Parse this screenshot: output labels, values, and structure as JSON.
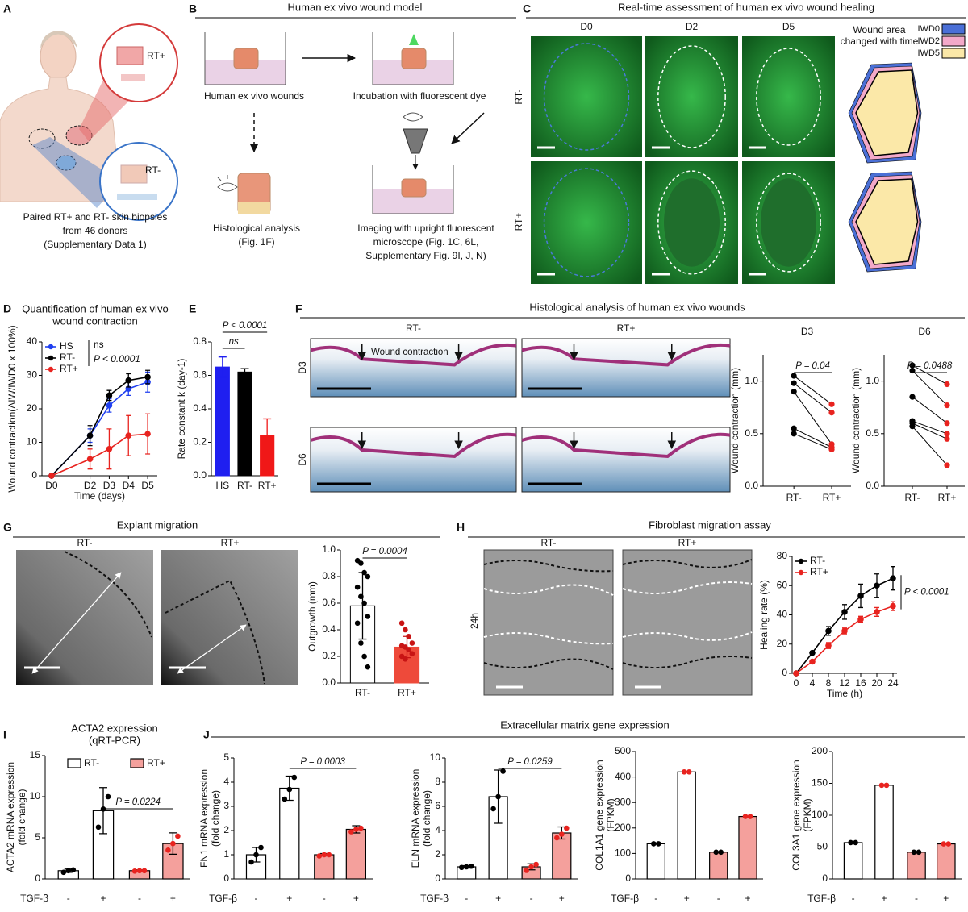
{
  "panel_labels": [
    "A",
    "B",
    "C",
    "D",
    "E",
    "F",
    "G",
    "H",
    "I",
    "J"
  ],
  "A": {
    "biopsy_labels": [
      "RT+",
      "RT-"
    ],
    "caption": [
      "Paired RT+ and RT- skin biopsies",
      "from 46 donors",
      "(Supplementary Data 1)"
    ]
  },
  "B": {
    "title": "Human ex vivo wound model",
    "steps": [
      "Human ex vivo wounds",
      "Incubation with fluorescent dye"
    ],
    "histology": [
      "Histological analysis",
      "(Fig. 1F)"
    ],
    "imaging": [
      "Imaging with upright fluorescent",
      "microscope (Fig. 1C, 6L,",
      "Supplementary Fig. 9I, J, N)"
    ]
  },
  "C": {
    "title": "Real-time assessment of human ex vivo wound healing",
    "columns": [
      "D0",
      "D2",
      "D5"
    ],
    "rows": [
      "RT-",
      "RT+"
    ],
    "legend_title": [
      "Wound area",
      "changed with time"
    ],
    "legend": [
      {
        "name": "IWD0",
        "color": "#4a6fd6"
      },
      {
        "name": "IWD2",
        "color": "#f3a9c9"
      },
      {
        "name": "IWD5",
        "color": "#fbe8a8"
      }
    ]
  },
  "D": {
    "type": "line",
    "title": [
      "Quantification of human ex vivo",
      "wound contraction"
    ],
    "ylabel": "Wound contraction(ΔIW/IWD0 x 100%)",
    "xlabel": "Time (days)",
    "x": [
      0,
      2,
      3,
      4,
      5
    ],
    "xlim": [
      -0.5,
      5.5
    ],
    "xticks": [
      {
        "value": 0,
        "label": "D0"
      },
      {
        "value": 2,
        "label": "D2"
      },
      {
        "value": 3,
        "label": "D3"
      },
      {
        "value": 4,
        "label": "D4"
      },
      {
        "value": 5,
        "label": "D5"
      }
    ],
    "ylim": [
      0,
      40
    ],
    "yticks": [
      0,
      10,
      20,
      30,
      40
    ],
    "series": [
      {
        "name": "HS",
        "color": "#1f3ff0",
        "values": [
          0,
          12,
          21,
          26,
          28
        ],
        "errors": [
          0,
          2,
          2,
          2,
          3
        ]
      },
      {
        "name": "RT-",
        "color": "#000000",
        "values": [
          0,
          12,
          24,
          28.5,
          29.5
        ],
        "errors": [
          0,
          3,
          1.5,
          2,
          2
        ]
      },
      {
        "name": "RT+",
        "color": "#e8231f",
        "values": [
          0,
          5,
          8,
          12,
          12.5
        ],
        "errors": [
          0,
          3,
          6,
          6,
          6
        ]
      }
    ],
    "annotations": [
      "ns",
      "P < 0.0001"
    ]
  },
  "E": {
    "type": "bar",
    "ylabel": "Rate constant k (day-1)",
    "categories": [
      "HS",
      "RT-",
      "RT+"
    ],
    "values": [
      0.65,
      0.62,
      0.24
    ],
    "errors": [
      0.06,
      0.02,
      0.1
    ],
    "colors": [
      "#1f1ff0",
      "#000000",
      "#f01818"
    ],
    "ylim": [
      0,
      0.8
    ],
    "yticks": [
      {
        "value": 0,
        "label": "0.0"
      },
      0.2,
      0.4,
      0.6,
      0.8
    ],
    "annotations": [
      "ns",
      "P < 0.0001"
    ]
  },
  "F": {
    "title": "Histological analysis of human ex vivo wounds",
    "columns": [
      "RT-",
      "RT+"
    ],
    "rows": [
      "D3",
      "D6"
    ],
    "annotation": "Wound contraction",
    "charts": [
      {
        "type": "paired",
        "title": "D3",
        "ylabel": "Wound contraction (mm)",
        "categories": [
          "RT-",
          "RT+"
        ],
        "series": [
          {
            "color": "#000000",
            "values": [
              1.05,
              0.98,
              0.9,
              0.55,
              0.5
            ]
          },
          {
            "color": "#e8231f",
            "values": [
              0.78,
              0.7,
              0.4,
              0.37,
              0.35
            ]
          }
        ],
        "ylim": [
          0,
          1.25
        ],
        "yticks": [
          {
            "value": 0,
            "label": "0.0"
          },
          0.5,
          {
            "value": 1,
            "label": "1.0"
          }
        ],
        "annotation": "P = 0.04"
      },
      {
        "type": "paired",
        "title": "D6",
        "ylabel": "Wound contraction (mm)",
        "categories": [
          "RT-",
          "RT+"
        ],
        "series": [
          {
            "color": "#000000",
            "values": [
              1.15,
              1.1,
              0.85,
              0.62,
              0.6,
              0.57
            ]
          },
          {
            "color": "#e8231f",
            "values": [
              0.97,
              0.77,
              0.6,
              0.5,
              0.45,
              0.2
            ]
          }
        ],
        "ylim": [
          0,
          1.25
        ],
        "yticks": [
          {
            "value": 0,
            "label": "0.0"
          },
          0.5,
          {
            "value": 1,
            "label": "1.0"
          }
        ],
        "annotation": "P = 0.0488"
      }
    ]
  },
  "G": {
    "title": "Explant migration",
    "columns": [
      "RT-",
      "RT+"
    ],
    "chart": {
      "type": "bar",
      "ylabel": "Outgrowth (mm)",
      "categories": [
        "RT-",
        "RT+"
      ],
      "values": [
        0.58,
        0.27
      ],
      "errors": [
        0.25,
        0.08
      ],
      "colors": [
        "#ffffff",
        "#ee4a3a"
      ],
      "point_colors": [
        "#000000",
        "#c81414"
      ],
      "points": [
        [
          0.92,
          0.9,
          0.83,
          0.8,
          0.72,
          0.65,
          0.6,
          0.5,
          0.45,
          0.3,
          0.2,
          0.12
        ],
        [
          0.45,
          0.4,
          0.35,
          0.3,
          0.28,
          0.27,
          0.25,
          0.22,
          0.2,
          0.18
        ]
      ],
      "ylim": [
        0,
        1
      ],
      "yticks": [
        {
          "value": 0,
          "label": "0.0"
        },
        0.2,
        0.4,
        0.6,
        0.8,
        {
          "value": 1,
          "label": "1.0"
        }
      ],
      "annotation": "P = 0.0004"
    }
  },
  "H": {
    "title": "Fibroblast migration assay",
    "columns": [
      "RT-",
      "RT+"
    ],
    "row": "24h",
    "chart": {
      "type": "line",
      "ylabel": "Healing rate (%)",
      "xlabel": "Time (h)",
      "x": [
        0,
        4,
        8,
        12,
        16,
        20,
        24
      ],
      "xlim": [
        -1,
        25
      ],
      "xticks": [
        0,
        4,
        8,
        12,
        16,
        20,
        24
      ],
      "ylim": [
        0,
        80
      ],
      "yticks": [
        0,
        20,
        40,
        60,
        80
      ],
      "series": [
        {
          "name": "RT-",
          "color": "#000000",
          "values": [
            0,
            14,
            29,
            42,
            53,
            60,
            65
          ],
          "errors": [
            0,
            1,
            3,
            5,
            8,
            8,
            8
          ]
        },
        {
          "name": "RT+",
          "color": "#e8231f",
          "values": [
            0,
            8,
            19,
            29,
            37,
            42,
            46
          ],
          "errors": [
            0,
            1,
            2,
            2,
            2,
            3,
            3
          ]
        }
      ],
      "annotations": [
        "P < 0.0001"
      ]
    }
  },
  "I": {
    "type": "bar4",
    "title": [
      "ACTA2 expression",
      "(qRT-PCR)"
    ],
    "ylabel": [
      "ACTA2 mRNA expression",
      "(fold change)"
    ],
    "legend": [
      {
        "name": "RT-",
        "color": "#ffffff"
      },
      {
        "name": "RT+",
        "color": "#f4a09c"
      }
    ],
    "treatment_label": "TGF-β",
    "treatment": [
      "-",
      "+",
      "-",
      "+"
    ],
    "values": [
      1,
      8.3,
      1,
      4.3
    ],
    "errors": [
      0.2,
      2.8,
      0.1,
      1.3
    ],
    "points": [
      [
        0.8,
        1,
        1.1
      ],
      [
        6.3,
        8.5,
        10
      ],
      [
        0.95,
        1,
        1
      ],
      [
        3.5,
        4.3,
        5.2
      ]
    ],
    "colors": [
      "#ffffff",
      "#ffffff",
      "#f4a09c",
      "#f4a09c"
    ],
    "point_colors": [
      "#000000",
      "#000000",
      "#e8231f",
      "#e8231f"
    ],
    "ylim": [
      0,
      15
    ],
    "yticks": [
      0,
      5,
      10,
      15
    ],
    "annotation": "P = 0.0224"
  },
  "J": {
    "title": "Extracellular matrix gene expression",
    "charts": [
      {
        "type": "bar4",
        "ylabel": [
          "FN1 mRNA expression",
          "(fold change)"
        ],
        "treatment_label": "TGF-β",
        "treatment": [
          "-",
          "+",
          "-",
          "+"
        ],
        "values": [
          1,
          3.75,
          1,
          2.05
        ],
        "errors": [
          0.3,
          0.5,
          0.05,
          0.15
        ],
        "points": [
          [
            0.7,
            1,
            1.3
          ],
          [
            3.3,
            3.7,
            4.2
          ],
          [
            0.95,
            1,
            1
          ],
          [
            1.95,
            2.05,
            2.1
          ]
        ],
        "colors": [
          "#ffffff",
          "#ffffff",
          "#f4a09c",
          "#f4a09c"
        ],
        "point_colors": [
          "#000000",
          "#000000",
          "#e8231f",
          "#e8231f"
        ],
        "ylim": [
          0,
          5
        ],
        "yticks": [
          0,
          1,
          2,
          3,
          4,
          5
        ],
        "annotation": "P = 0.0003"
      },
      {
        "type": "bar4",
        "ylabel": [
          "ELN mRNA expression",
          "(fold change)"
        ],
        "treatment_label": "TGF-β",
        "treatment": [
          "-",
          "+",
          "-",
          "+"
        ],
        "values": [
          1,
          6.8,
          1,
          3.8
        ],
        "errors": [
          0.1,
          2.2,
          0.25,
          0.5
        ],
        "points": [
          [
            0.95,
            1,
            1.05
          ],
          [
            5.8,
            6.8,
            8.9
          ],
          [
            0.7,
            1,
            1.2
          ],
          [
            3.4,
            3.7,
            4.2
          ]
        ],
        "colors": [
          "#ffffff",
          "#ffffff",
          "#f4a09c",
          "#f4a09c"
        ],
        "point_colors": [
          "#000000",
          "#000000",
          "#e8231f",
          "#e8231f"
        ],
        "ylim": [
          0,
          10
        ],
        "yticks": [
          0,
          2,
          4,
          6,
          8,
          10
        ],
        "annotation": "P = 0.0259"
      },
      {
        "type": "bar4",
        "ylabel": [
          "COL1A1 gene expression",
          "(FPKM)"
        ],
        "treatment_label": "TGF-β",
        "treatment": [
          "-",
          "+",
          "-",
          "+"
        ],
        "values": [
          138,
          420,
          105,
          245
        ],
        "points": [
          [
            138,
            138
          ],
          [
            420,
            420
          ],
          [
            105,
            105
          ],
          [
            245,
            245
          ]
        ],
        "colors": [
          "#ffffff",
          "#ffffff",
          "#f4a09c",
          "#f4a09c"
        ],
        "point_colors": [
          "#000000",
          "#e8231f",
          "#000000",
          "#e8231f"
        ],
        "ylim": [
          0,
          500
        ],
        "yticks": [
          0,
          100,
          200,
          300,
          400,
          500
        ]
      },
      {
        "type": "bar4",
        "ylabel": [
          "COL3A1 gene expression",
          "(FPKM)"
        ],
        "treatment_label": "TGF-β",
        "treatment": [
          "-",
          "+",
          "-",
          "+"
        ],
        "values": [
          57,
          147,
          42,
          55
        ],
        "points": [
          [
            57,
            57
          ],
          [
            147,
            147
          ],
          [
            42,
            42
          ],
          [
            55,
            55
          ]
        ],
        "colors": [
          "#ffffff",
          "#ffffff",
          "#f4a09c",
          "#f4a09c"
        ],
        "point_colors": [
          "#000000",
          "#e8231f",
          "#000000",
          "#e8231f"
        ],
        "ylim": [
          0,
          200
        ],
        "yticks": [
          0,
          50,
          100,
          150,
          200
        ]
      }
    ]
  }
}
